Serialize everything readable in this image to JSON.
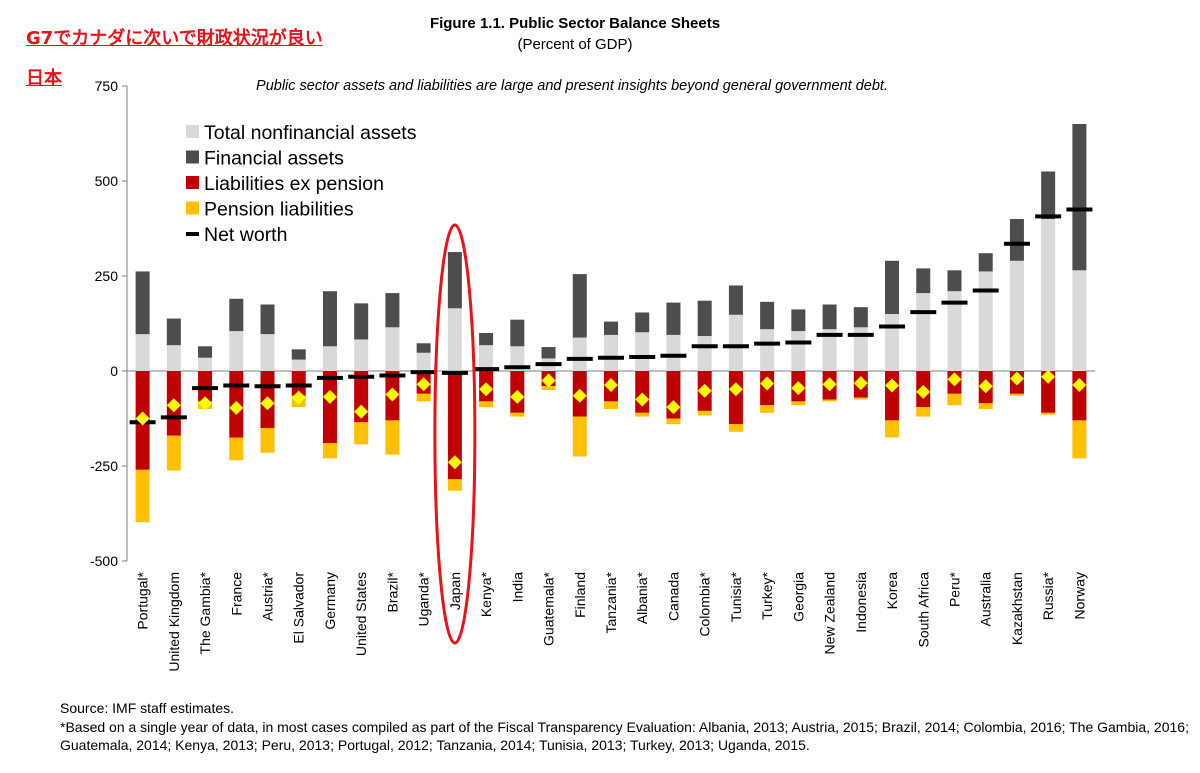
{
  "annotation": {
    "line1": "G7でカナダに次いで財政状況が良い",
    "line2": "日本",
    "highlight_color": "#e8121b"
  },
  "chart_data": {
    "type": "bar",
    "title": "Figure 1.1. Public Sector Balance Sheets",
    "subtitle": "(Percent of GDP)",
    "annotation": "Public sector assets and liabilities are large and present insights beyond general government debt.",
    "ylim": [
      -500,
      750
    ],
    "yticks": [
      750,
      500,
      250,
      0,
      -250,
      -500
    ],
    "ytick_labels": [
      "750",
      "500",
      "250",
      "0",
      "-250",
      "-500"
    ],
    "highlighted_category": "Japan",
    "categories": [
      "Portugal*",
      "United Kingdom",
      "The Gambia*",
      "France",
      "Austria*",
      "El Salvador",
      "Germany",
      "United States",
      "Brazil*",
      "Uganda*",
      "Japan",
      "Kenya*",
      "India",
      "Guatemala*",
      "Finland",
      "Tanzania*",
      "Albania*",
      "Canada",
      "Colombia*",
      "Tunisia*",
      "Turkey*",
      "Georgia",
      "New Zealand",
      "Indonesia",
      "Korea",
      "South Africa",
      "Peru*",
      "Australia",
      "Kazakhstan",
      "Russia*",
      "Norway"
    ],
    "legend": [
      {
        "key": "nonfin",
        "label": "Total nonfinancial assets",
        "color": "#d9d9d9",
        "marker": "box"
      },
      {
        "key": "fin",
        "label": "Financial assets",
        "color": "#4d4d4d",
        "marker": "box"
      },
      {
        "key": "liab",
        "label": "Liabilities ex pension",
        "color": "#c00000",
        "marker": "box"
      },
      {
        "key": "pension",
        "label": "Pension liabilities",
        "color": "#ffc000",
        "marker": "box"
      },
      {
        "key": "net",
        "label": "Net worth",
        "color": "#000000",
        "marker": "dash"
      }
    ],
    "series": [
      {
        "name": "Total nonfinancial assets",
        "values": [
          97,
          68,
          35,
          105,
          97,
          30,
          65,
          83,
          115,
          48,
          165,
          68,
          65,
          33,
          88,
          95,
          102,
          95,
          92,
          148,
          110,
          105,
          110,
          115,
          150,
          205,
          210,
          262,
          290,
          400,
          265
        ]
      },
      {
        "name": "Financial assets",
        "values": [
          165,
          70,
          30,
          85,
          78,
          27,
          145,
          95,
          90,
          25,
          148,
          32,
          70,
          30,
          167,
          35,
          52,
          85,
          93,
          77,
          72,
          57,
          65,
          53,
          140,
          65,
          55,
          48,
          110,
          125,
          385
        ]
      },
      {
        "name": "Liabilities ex pension",
        "values": [
          -260,
          -170,
          -80,
          -175,
          -150,
          -65,
          -190,
          -135,
          -130,
          -60,
          -285,
          -80,
          -110,
          -40,
          -120,
          -80,
          -110,
          -125,
          -105,
          -140,
          -90,
          -80,
          -75,
          -70,
          -130,
          -95,
          -60,
          -85,
          -60,
          -110,
          -130
        ]
      },
      {
        "name": "Pension liabilities",
        "values": [
          -138,
          -92,
          -20,
          -60,
          -65,
          -30,
          -40,
          -58,
          -90,
          -20,
          -30,
          -15,
          -10,
          -10,
          -105,
          -20,
          -10,
          -15,
          -12,
          -20,
          -20,
          -10,
          -5,
          -5,
          -45,
          -25,
          -30,
          -15,
          -5,
          -5,
          -100
        ]
      },
      {
        "name": "Net worth",
        "values": [
          -135,
          -122,
          -45,
          -38,
          -40,
          -38,
          -18,
          -15,
          -12,
          -3,
          -5,
          5,
          10,
          18,
          32,
          35,
          37,
          40,
          65,
          65,
          72,
          75,
          95,
          95,
          117,
          155,
          180,
          212,
          335,
          407,
          425
        ]
      },
      {
        "name": "Yellow diamond marker",
        "values": [
          -125,
          -90,
          -85,
          -97,
          -85,
          -70,
          -68,
          -107,
          -62,
          -35,
          -240,
          -48,
          -68,
          -25,
          -65,
          -37,
          -75,
          -95,
          -52,
          -48,
          -33,
          -45,
          -35,
          -32,
          -38,
          -55,
          -22,
          -40,
          -20,
          -15,
          -37
        ]
      }
    ]
  },
  "source": "Source: IMF staff estimates.",
  "footnote": "*Based on a single year of data, in most cases compiled as part of the Fiscal Transparency Evaluation: Albania, 2013; Austria, 2015; Brazil, 2014; Colombia, 2016; The Gambia, 2016; Guatemala, 2014; Kenya, 2013; Peru, 2013; Portugal, 2012; Tanzania, 2014; Tunisia, 2013; Turkey, 2013; Uganda, 2015."
}
